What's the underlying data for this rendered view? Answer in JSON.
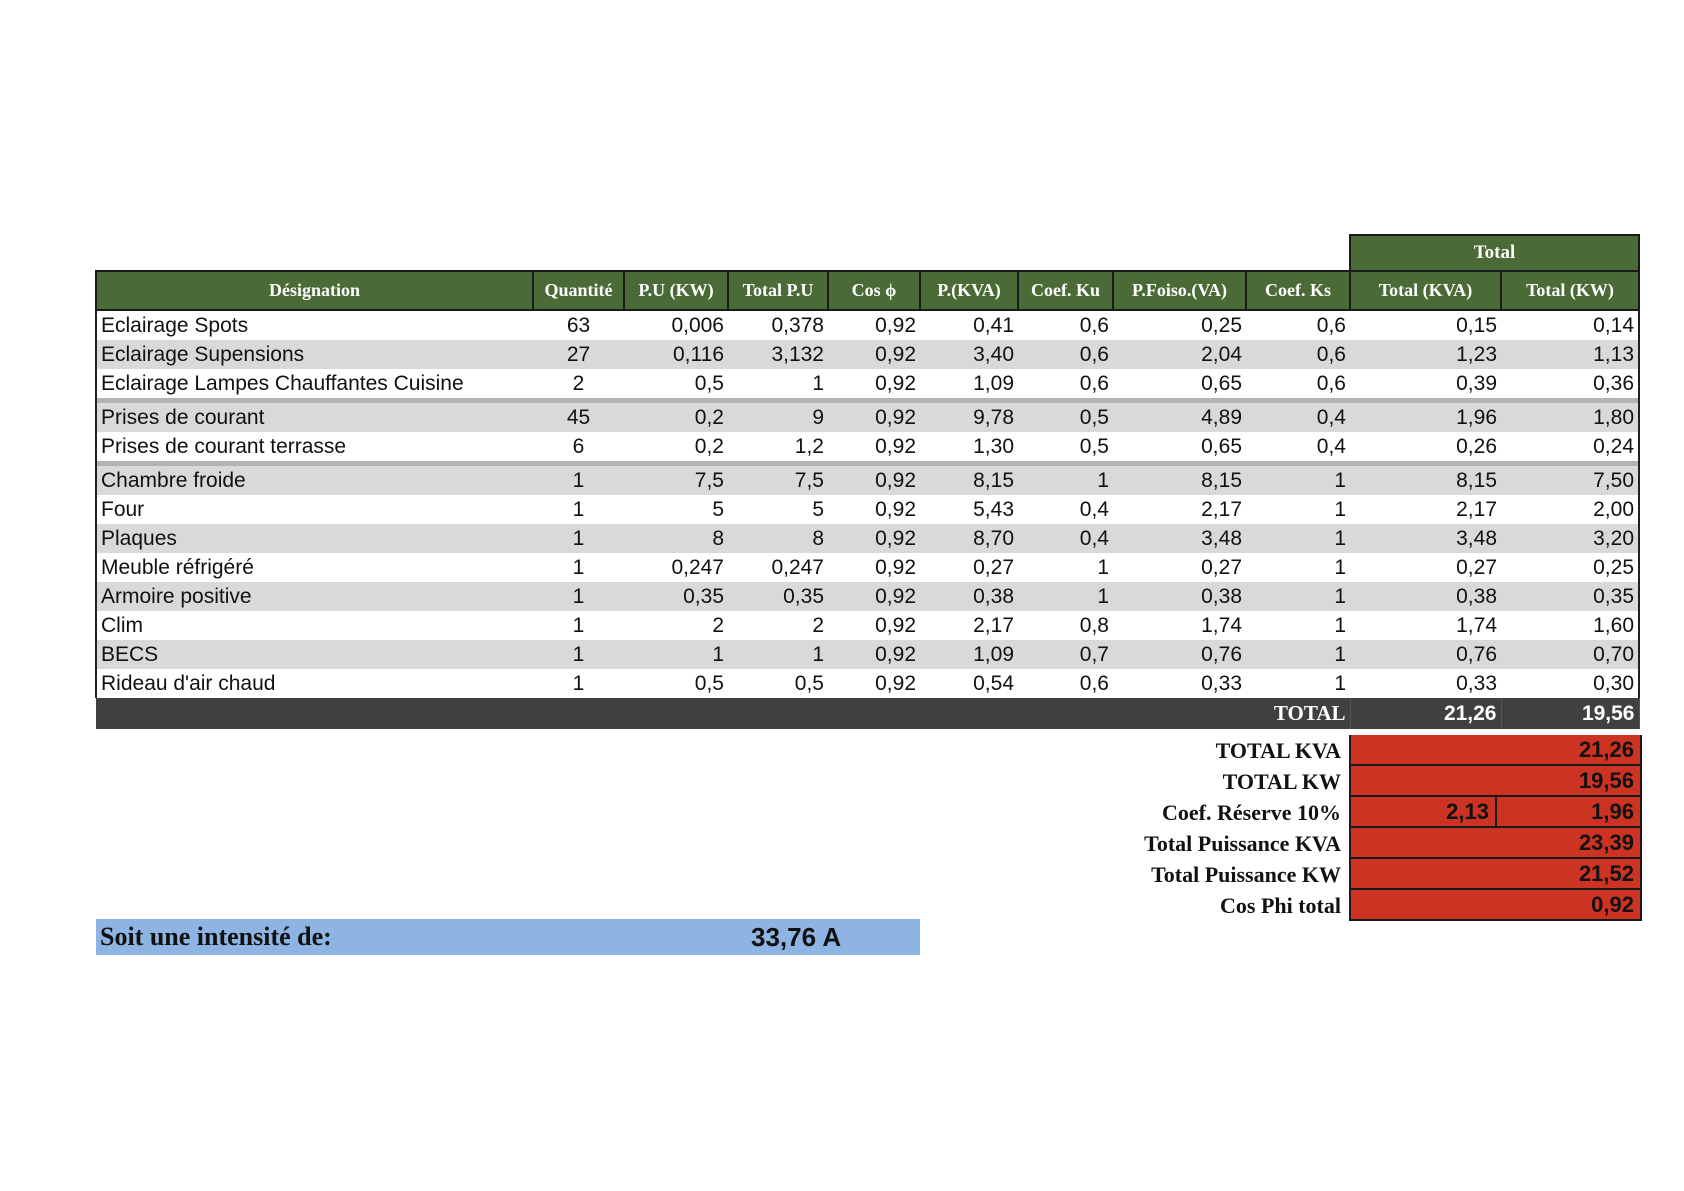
{
  "header": {
    "group_label": "Total",
    "columns": [
      "Désignation",
      "Quantité",
      "P.U (KW)",
      "Total P.U",
      "Cos ϕ",
      "P.(KVA)",
      "Coef. Ku",
      "P.Foiso.(VA)",
      "Coef. Ks",
      "Total (KVA)",
      "Total (KW)"
    ]
  },
  "groups": [
    [
      [
        "Eclairage Spots",
        "63",
        "0,006",
        "0,378",
        "0,92",
        "0,41",
        "0,6",
        "0,25",
        "0,6",
        "0,15",
        "0,14"
      ],
      [
        "Eclairage Supensions",
        "27",
        "0,116",
        "3,132",
        "0,92",
        "3,40",
        "0,6",
        "2,04",
        "0,6",
        "1,23",
        "1,13"
      ],
      [
        "Eclairage Lampes Chauffantes Cuisine",
        "2",
        "0,5",
        "1",
        "0,92",
        "1,09",
        "0,6",
        "0,65",
        "0,6",
        "0,39",
        "0,36"
      ]
    ],
    [
      [
        "Prises de courant",
        "45",
        "0,2",
        "9",
        "0,92",
        "9,78",
        "0,5",
        "4,89",
        "0,4",
        "1,96",
        "1,80"
      ],
      [
        "Prises de courant terrasse",
        "6",
        "0,2",
        "1,2",
        "0,92",
        "1,30",
        "0,5",
        "0,65",
        "0,4",
        "0,26",
        "0,24"
      ]
    ],
    [
      [
        "Chambre froide",
        "1",
        "7,5",
        "7,5",
        "0,92",
        "8,15",
        "1",
        "8,15",
        "1",
        "8,15",
        "7,50"
      ],
      [
        "Four",
        "1",
        "5",
        "5",
        "0,92",
        "5,43",
        "0,4",
        "2,17",
        "1",
        "2,17",
        "2,00"
      ],
      [
        "Plaques",
        "1",
        "8",
        "8",
        "0,92",
        "8,70",
        "0,4",
        "3,48",
        "1",
        "3,48",
        "3,20"
      ],
      [
        "Meuble réfrigéré",
        "1",
        "0,247",
        "0,247",
        "0,92",
        "0,27",
        "1",
        "0,27",
        "1",
        "0,27",
        "0,25"
      ],
      [
        "Armoire positive",
        "1",
        "0,35",
        "0,35",
        "0,92",
        "0,38",
        "1",
        "0,38",
        "1",
        "0,38",
        "0,35"
      ],
      [
        "Clim",
        "1",
        "2",
        "2",
        "0,92",
        "2,17",
        "0,8",
        "1,74",
        "1",
        "1,74",
        "1,60"
      ],
      [
        "BECS",
        "1",
        "1",
        "1",
        "0,92",
        "1,09",
        "0,7",
        "0,76",
        "1",
        "0,76",
        "0,70"
      ],
      [
        "Rideau d'air chaud",
        "1",
        "0,5",
        "0,5",
        "0,92",
        "0,54",
        "0,6",
        "0,33",
        "1",
        "0,33",
        "0,30"
      ]
    ]
  ],
  "total_row": {
    "label": "TOTAL",
    "kva": "21,26",
    "kw": "19,56"
  },
  "summary": [
    {
      "label": "TOTAL KVA",
      "value": "21,26"
    },
    {
      "label": "TOTAL KW",
      "value": "19,56"
    },
    {
      "label": "Coef. Réserve 10%",
      "value_kva": "2,13",
      "value": "1,96"
    },
    {
      "label": "Total Puissance KVA",
      "value": "23,39"
    },
    {
      "label": "Total Puissance KW",
      "value": "21,52"
    },
    {
      "label": "Cos Phi total",
      "value": "0,92"
    }
  ],
  "intensity": {
    "label": "Soit une intensité de:",
    "value": "33,76 A"
  },
  "colors": {
    "header_green": "#4a6b36",
    "total_dark": "#404040",
    "summary_red": "#cc3322",
    "intensity_blue": "#8db4e2",
    "row_gray": "#d9d9d9"
  }
}
